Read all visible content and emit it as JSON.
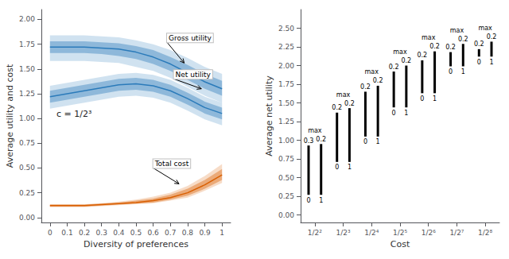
{
  "chart_data": [
    {
      "type": "line",
      "xlabel": "Diversity of preferences",
      "ylabel": "Average utility and cost",
      "x": [
        0,
        0.1,
        0.2,
        0.3,
        0.4,
        0.5,
        0.6,
        0.7,
        0.8,
        0.9,
        1
      ],
      "xlim": [
        -0.05,
        1.05
      ],
      "xticks": [
        0,
        0.1,
        0.2,
        0.3,
        0.4,
        0.5,
        0.6,
        0.7,
        0.8,
        0.9,
        1
      ],
      "ylim": [
        -0.05,
        2.1
      ],
      "yticks": [
        {
          "value": 0.0,
          "label": "0.00"
        },
        {
          "value": 0.25,
          "label": "0.25"
        },
        {
          "value": 0.5,
          "label": "0.50"
        },
        {
          "value": 0.75,
          "label": "0.75"
        },
        {
          "value": 1.0,
          "label": "1.00"
        },
        {
          "value": 1.25,
          "label": "1.25"
        },
        {
          "value": 1.5,
          "label": "1.50"
        },
        {
          "value": 1.75,
          "label": "1.75"
        },
        {
          "value": 2.0,
          "label": "2.00"
        }
      ],
      "grid": false,
      "series": [
        {
          "color": "#2b7bba",
          "values": [
            1.72,
            1.72,
            1.72,
            1.71,
            1.7,
            1.67,
            1.62,
            1.55,
            1.46,
            1.37,
            1.3
          ],
          "upper1": [
            1.78,
            1.78,
            1.78,
            1.77,
            1.76,
            1.73,
            1.69,
            1.62,
            1.54,
            1.45,
            1.38
          ],
          "upper2": [
            1.84,
            1.84,
            1.84,
            1.83,
            1.82,
            1.79,
            1.75,
            1.69,
            1.61,
            1.52,
            1.45
          ],
          "lower1": [
            1.66,
            1.66,
            1.66,
            1.65,
            1.63,
            1.6,
            1.55,
            1.48,
            1.39,
            1.3,
            1.23
          ],
          "lower2": [
            1.58,
            1.58,
            1.58,
            1.57,
            1.56,
            1.52,
            1.48,
            1.41,
            1.32,
            1.23,
            1.16
          ]
        },
        {
          "color": "#2b7bba",
          "values": [
            1.22,
            1.25,
            1.28,
            1.31,
            1.34,
            1.35,
            1.33,
            1.28,
            1.2,
            1.11,
            1.05
          ],
          "upper1": [
            1.28,
            1.31,
            1.34,
            1.37,
            1.4,
            1.41,
            1.39,
            1.34,
            1.26,
            1.17,
            1.11
          ],
          "upper2": [
            1.33,
            1.36,
            1.39,
            1.42,
            1.45,
            1.46,
            1.44,
            1.39,
            1.31,
            1.22,
            1.16
          ],
          "lower1": [
            1.16,
            1.19,
            1.22,
            1.25,
            1.28,
            1.29,
            1.27,
            1.22,
            1.14,
            1.05,
            0.99
          ],
          "lower2": [
            1.1,
            1.13,
            1.16,
            1.19,
            1.22,
            1.23,
            1.21,
            1.16,
            1.08,
            0.99,
            0.93
          ]
        },
        {
          "color": "#d95f02",
          "values": [
            0.12,
            0.12,
            0.12,
            0.13,
            0.14,
            0.15,
            0.17,
            0.2,
            0.25,
            0.33,
            0.43
          ],
          "upper1": [
            0.13,
            0.13,
            0.13,
            0.14,
            0.15,
            0.17,
            0.19,
            0.23,
            0.29,
            0.38,
            0.49
          ],
          "upper2": [
            0.135,
            0.135,
            0.135,
            0.145,
            0.16,
            0.18,
            0.21,
            0.25,
            0.32,
            0.42,
            0.54
          ],
          "lower1": [
            0.11,
            0.11,
            0.11,
            0.12,
            0.13,
            0.14,
            0.15,
            0.18,
            0.22,
            0.29,
            0.38
          ],
          "lower2": [
            0.105,
            0.105,
            0.105,
            0.115,
            0.125,
            0.135,
            0.145,
            0.17,
            0.2,
            0.27,
            0.35
          ]
        }
      ],
      "annotations": [
        {
          "text": "c = 1/2³"
        },
        {
          "text": "Gross utility",
          "x": 0.78,
          "y": 1.56,
          "text_x": 0.68,
          "text_y": 1.77
        },
        {
          "text": "Net utility",
          "x": 0.88,
          "y": 1.3,
          "text_x": 0.72,
          "text_y": 1.4
        },
        {
          "text": "Total cost",
          "x": 0.75,
          "y": 0.34,
          "text_x": 0.6,
          "text_y": 0.5
        }
      ]
    },
    {
      "type": "range",
      "xlabel": "Cost",
      "ylabel": "Average net utility",
      "categories": [
        "1/2²",
        "1/2³",
        "1/2⁴",
        "1/2⁵",
        "1/2⁶",
        "1/2⁷",
        "1/2⁸"
      ],
      "ylim": [
        -0.1,
        2.75
      ],
      "yticks": [
        {
          "value": 0.0,
          "label": "0.00"
        },
        {
          "value": 0.25,
          "label": "0.25"
        },
        {
          "value": 0.5,
          "label": "0.50"
        },
        {
          "value": 0.75,
          "label": "0.75"
        },
        {
          "value": 1.0,
          "label": "1.00"
        },
        {
          "value": 1.25,
          "label": "1.25"
        },
        {
          "value": 1.5,
          "label": "1.50"
        },
        {
          "value": 1.75,
          "label": "1.75"
        },
        {
          "value": 2.0,
          "label": "2.00"
        },
        {
          "value": 2.25,
          "label": "2.25"
        },
        {
          "value": 2.5,
          "label": "2.50"
        }
      ],
      "grid": false,
      "max_label": "max",
      "series": [
        {
          "color": "#000000",
          "values": [
            0.93,
            1.37,
            1.65,
            1.92,
            2.07,
            2.18,
            2.22
          ],
          "bottoms": [
            0.27,
            0.71,
            1.05,
            1.44,
            1.63,
            1.99,
            2.12
          ],
          "top_labels": [
            "0.3",
            "0.2",
            "0.2",
            "0.2",
            "0.2",
            "0.2",
            "0.2"
          ],
          "bottom_label": "0"
        },
        {
          "color": "#000000",
          "values": [
            0.95,
            1.43,
            1.73,
            2.0,
            2.19,
            2.29,
            2.32
          ],
          "bottoms": [
            0.27,
            0.71,
            1.05,
            1.44,
            1.63,
            1.99,
            2.12
          ],
          "top_labels": [
            "0.2",
            "0.2",
            "0.2",
            "0.2",
            "0.2",
            "0.2",
            "0.2"
          ],
          "bottom_label": "1"
        }
      ]
    }
  ]
}
